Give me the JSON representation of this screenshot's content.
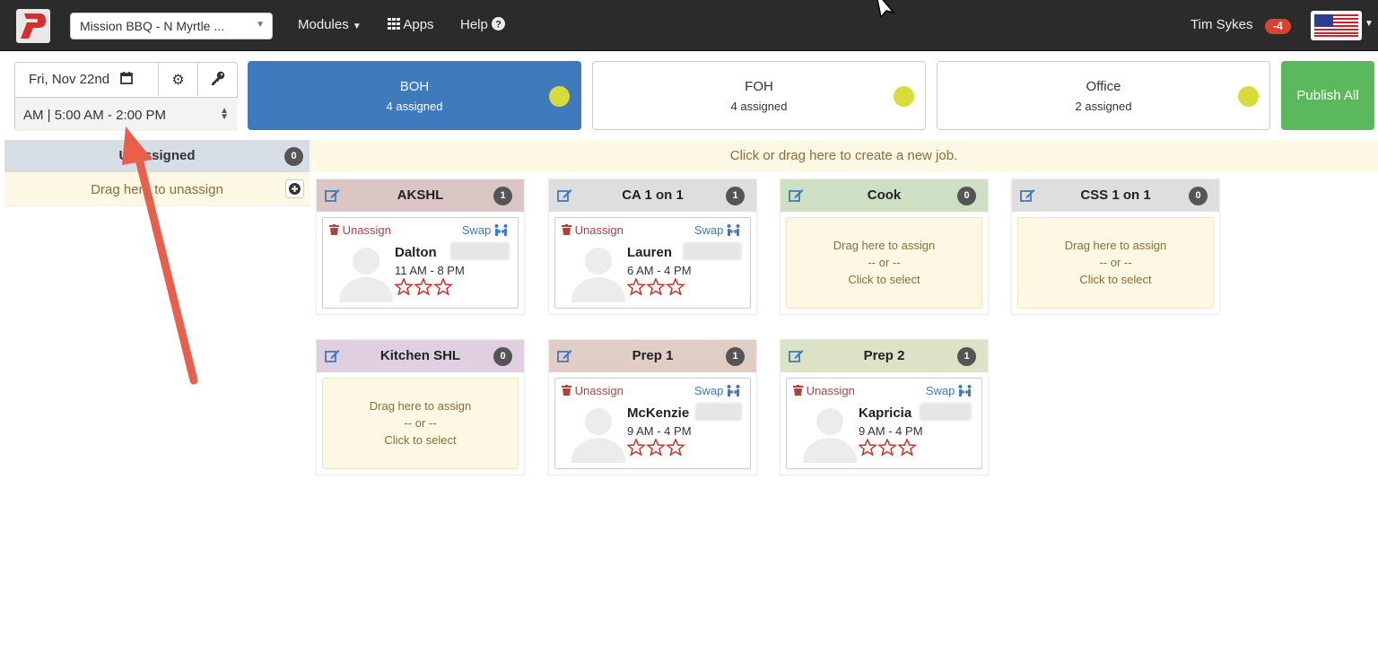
{
  "navbar": {
    "store": "Mission BBQ - N Myrtle ...",
    "modules": "Modules",
    "apps": "Apps",
    "help": "Help",
    "user": "Tim Sykes",
    "notifications": "-4"
  },
  "controls": {
    "date": "Fri, Nov 22nd",
    "shift": "AM | 5:00 AM - 2:00 PM"
  },
  "departments": [
    {
      "name": "BOH",
      "assigned": "4 assigned"
    },
    {
      "name": "FOH",
      "assigned": "4 assigned"
    },
    {
      "name": "Office",
      "assigned": "2 assigned"
    }
  ],
  "publish_label": "Publish All",
  "unassigned": {
    "title": "Unassigned",
    "count": "0",
    "drop_text": "Drag here to unassign"
  },
  "new_job_text": "Click or drag here to create a new job.",
  "labels": {
    "unassign": "Unassign",
    "swap": "Swap",
    "drag_assign": "Drag here to assign",
    "or": "-- or --",
    "click_select": "Click to select"
  },
  "jobs": [
    {
      "title": "AKSHL",
      "count": "1",
      "employee": {
        "name": "Dalton",
        "time": "11 AM - 8 PM"
      }
    },
    {
      "title": "CA 1 on 1",
      "count": "1",
      "employee": {
        "name": "Lauren",
        "time": "6 AM - 4 PM"
      }
    },
    {
      "title": "Cook",
      "count": "0"
    },
    {
      "title": "CSS 1 on 1",
      "count": "0"
    },
    {
      "title": "Kitchen SHL",
      "count": "0"
    },
    {
      "title": "Prep 1",
      "count": "1",
      "employee": {
        "name": "McKenzie",
        "time": "9 AM - 4 PM"
      }
    },
    {
      "title": "Prep 2",
      "count": "1",
      "employee": {
        "name": "Kapricia",
        "time": "9 AM - 4 PM"
      }
    }
  ],
  "colors": {
    "navbar": "#2b2b2b",
    "active_dept": "#3f7abd",
    "publish": "#5cb85c",
    "status_dot": "#d8dc3a",
    "drop_zone": "#fcf8e3",
    "head_akshl": "#dcc5c5",
    "head_ca": "#dedede",
    "head_cook": "#cde0c4",
    "head_css": "#dedede",
    "head_kitchen": "#e0cfe0",
    "head_prep1": "#e0cdc6",
    "head_prep2": "#dbe2c6",
    "annotation_arrow": "#e8604c"
  },
  "icons": [
    "p-logo-icon",
    "calendar-icon",
    "gear-icon",
    "key-icon",
    "grid-icon",
    "question-circle-icon",
    "us-flag-icon",
    "edit-icon",
    "trash-icon",
    "swap-icon",
    "star-icon",
    "user-avatar-icon",
    "plus-circle-icon",
    "cursor-icon"
  ]
}
